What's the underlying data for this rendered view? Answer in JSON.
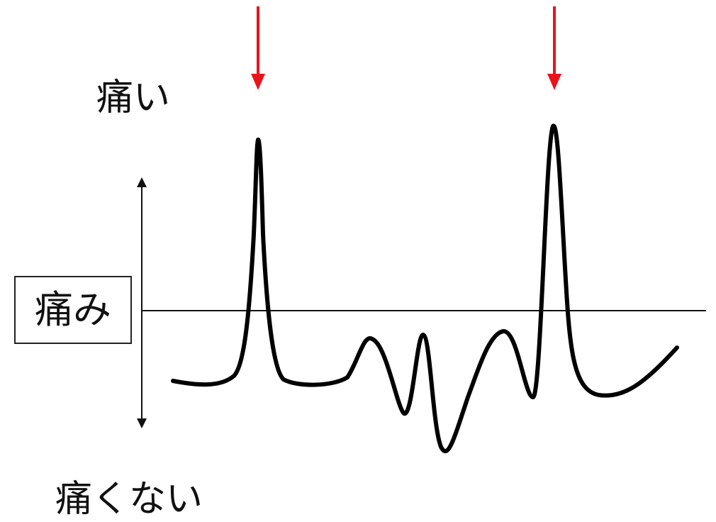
{
  "labels": {
    "high": "痛い",
    "center": "痛み",
    "low": "痛くない"
  },
  "colors": {
    "curve": "#000000",
    "markers": "#e8141b",
    "axis": "#111111"
  }
}
